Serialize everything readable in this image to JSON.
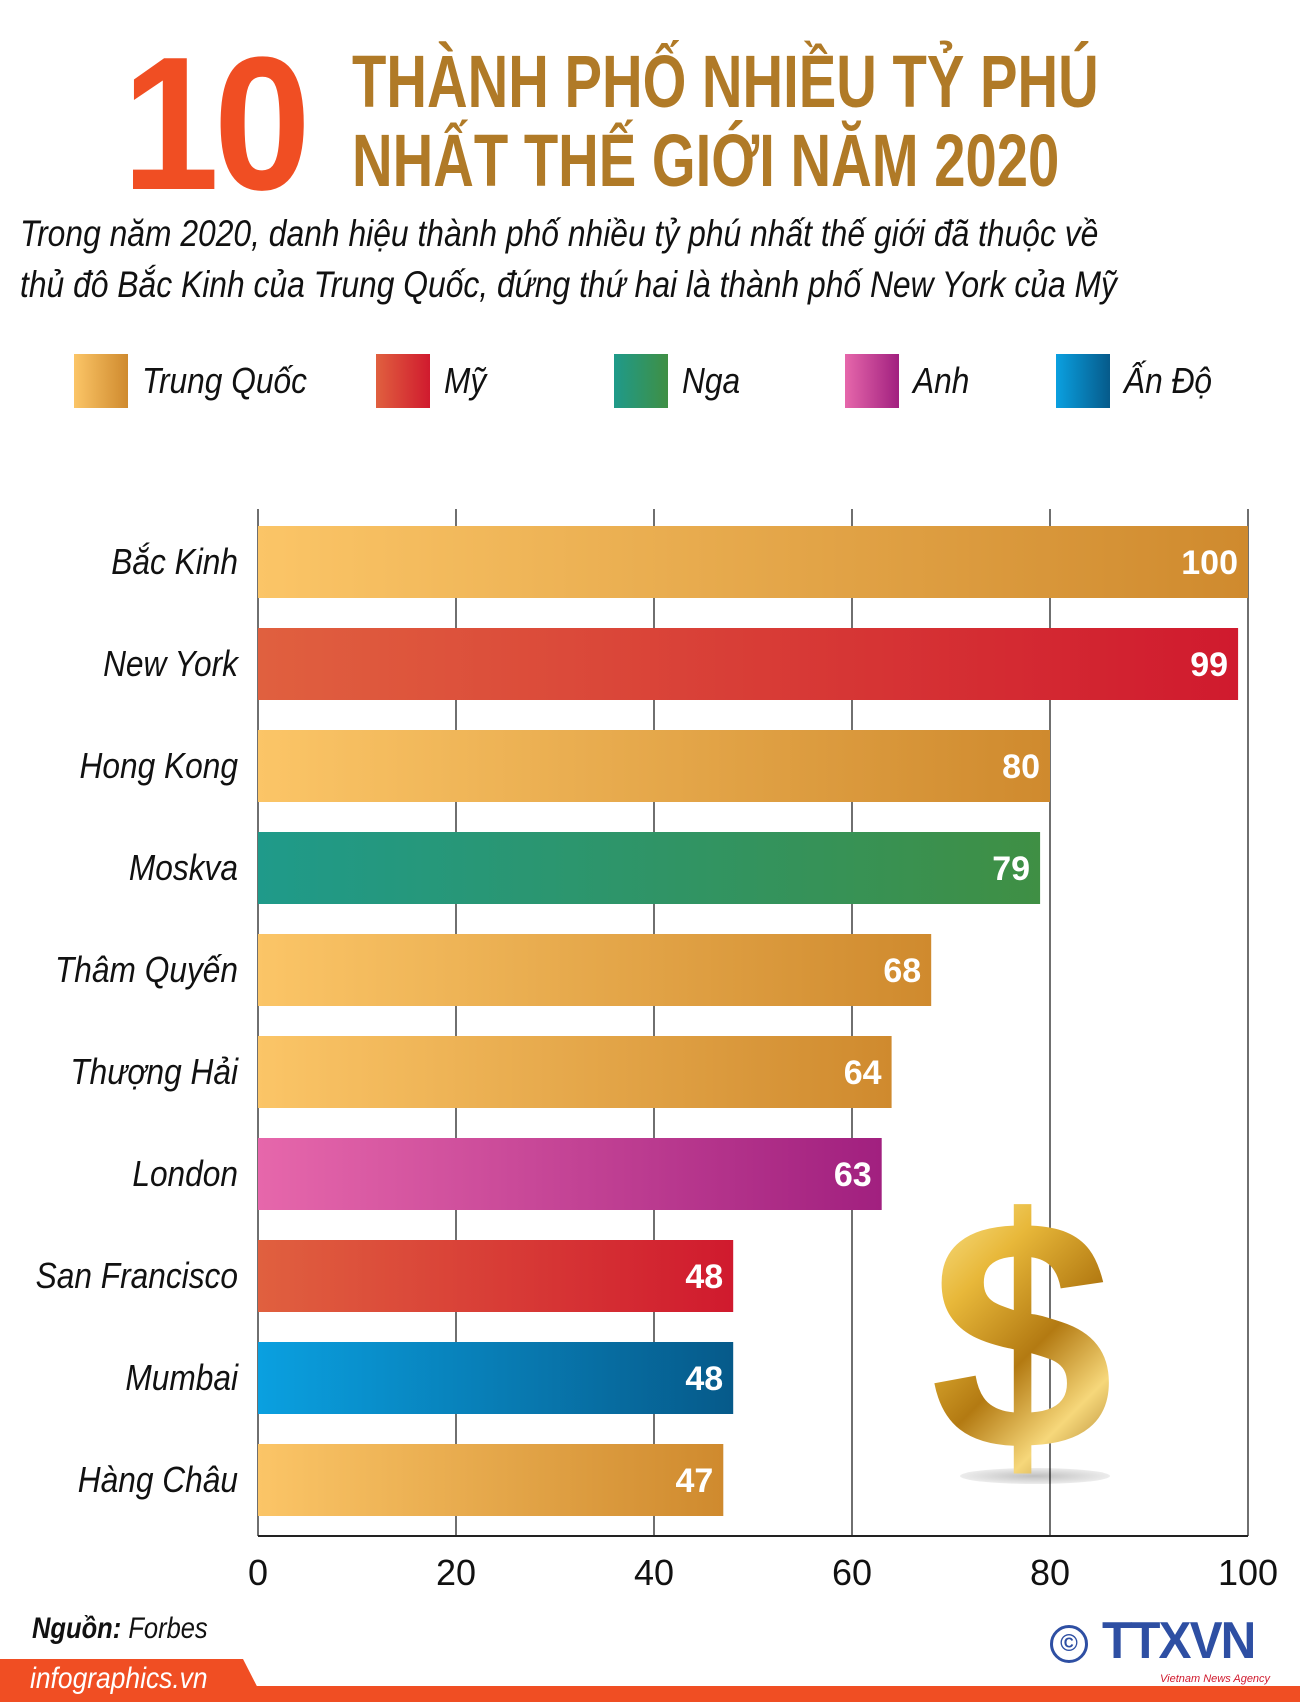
{
  "header": {
    "number": "10",
    "title_line1": "THÀNH PHỐ NHIỀU TỶ PHÚ",
    "title_line2": "NHẤT THẾ GIỚI NĂM 2020",
    "subtitle_line1": "Trong năm 2020, danh hiệu thành phố nhiều tỷ phú nhất thế giới đã thuộc về",
    "subtitle_line2": "thủ đô Bắc Kinh của Trung Quốc, đứng thứ hai là thành phố New York của Mỹ"
  },
  "legend": [
    {
      "label": "Trung Quốc",
      "from": "#fbc567",
      "to": "#cf8a2e"
    },
    {
      "label": "Mỹ",
      "from": "#e0603f",
      "to": "#d01a2e"
    },
    {
      "label": "Nga",
      "from": "#1f9a8a",
      "to": "#3f8f44"
    },
    {
      "label": "Anh",
      "from": "#e667ab",
      "to": "#a1207f"
    },
    {
      "label": "Ấn Độ",
      "from": "#0aa0e0",
      "to": "#065a8a"
    }
  ],
  "chart_data": {
    "type": "bar",
    "orientation": "horizontal",
    "categories": [
      "Bắc Kinh",
      "New York",
      "Hong Kong",
      "Moskva",
      "Thâm Quyến",
      "Thượng Hải",
      "London",
      "San Francisco",
      "Mumbai",
      "Hàng Châu"
    ],
    "values": [
      100,
      99,
      80,
      79,
      68,
      64,
      63,
      48,
      48,
      47
    ],
    "country": [
      "Trung Quốc",
      "Mỹ",
      "Trung Quốc",
      "Nga",
      "Trung Quốc",
      "Trung Quốc",
      "Anh",
      "Mỹ",
      "Ấn Độ",
      "Trung Quốc"
    ],
    "xlim": [
      0,
      100
    ],
    "xticks": [
      0,
      20,
      40,
      60,
      80,
      100
    ],
    "grid": true,
    "data_labels": true,
    "legend_position": "top"
  },
  "footer": {
    "source_label": "Nguồn:",
    "source_value": "Forbes",
    "site": "infographics.vn",
    "copyright": "©",
    "logo": "TTXVN",
    "logo_sub": "Vietnam News Agency"
  },
  "decor": {
    "icon": "gold-dollar-sign-icon",
    "accent": "#f04e23",
    "title_color": "#b07a27"
  }
}
